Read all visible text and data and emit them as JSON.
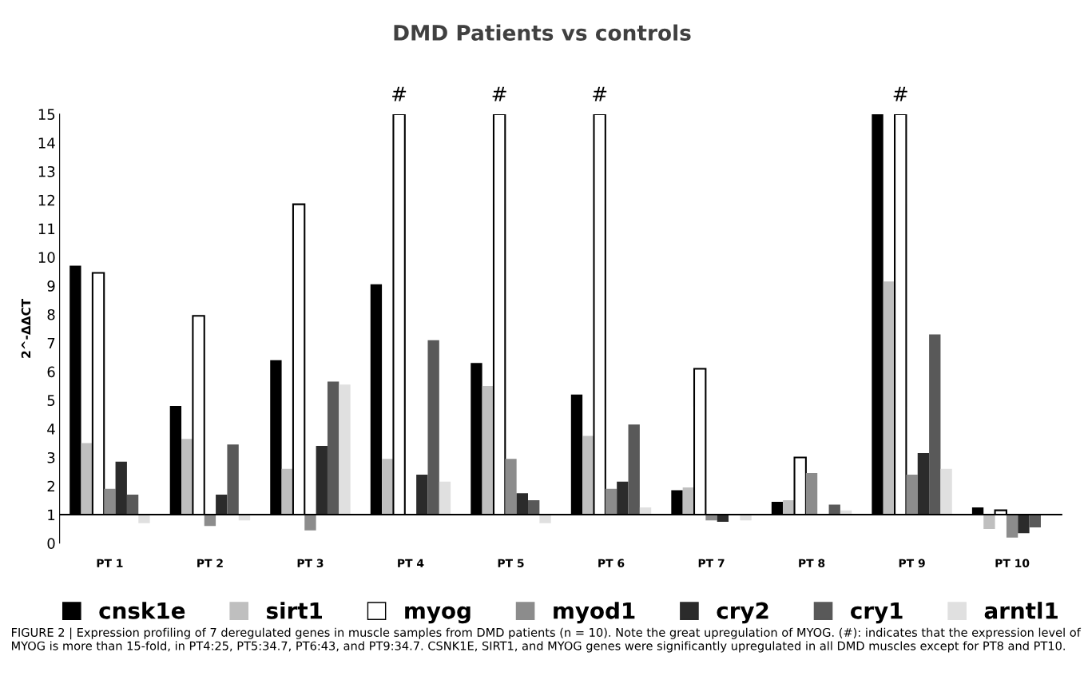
{
  "chart_data": {
    "type": "bar",
    "title": "DMD Patients vs controls",
    "ylabel": "2^-ΔΔCT",
    "categories": [
      "PT 1",
      "PT 2",
      "PT 3",
      "PT 4",
      "PT 5",
      "PT 6",
      "PT 7",
      "PT 8",
      "PT 9",
      "PT 10"
    ],
    "series": [
      {
        "name": "cnsk1e",
        "color": "#000000",
        "base": [
          1,
          1,
          1,
          1,
          1,
          1,
          1,
          1,
          1,
          1
        ],
        "values": [
          8.7,
          3.8,
          5.4,
          8.05,
          5.3,
          4.2,
          0.85,
          0.45,
          14,
          0.25
        ]
      },
      {
        "name": "sirt1",
        "color": "#bfbfbf",
        "base": [
          1,
          1,
          1,
          1,
          1,
          1,
          1,
          1,
          1,
          1
        ],
        "values": [
          2.5,
          2.65,
          1.6,
          1.95,
          4.5,
          2.75,
          0.95,
          0.5,
          8.15,
          -0.5
        ]
      },
      {
        "name": "myog",
        "color": "#ffffff",
        "base": [
          1,
          1,
          1,
          1,
          1,
          1,
          1,
          1,
          1,
          1
        ],
        "values": [
          8.45,
          6.95,
          10.85,
          14,
          14,
          14,
          5.1,
          2.0,
          14,
          0.15
        ]
      },
      {
        "name": "myod1",
        "color": "#8c8c8c",
        "base": [
          1,
          1,
          1,
          null,
          1,
          1,
          1,
          1,
          1,
          1
        ],
        "values": [
          0.9,
          -0.4,
          -0.55,
          null,
          1.95,
          0.9,
          -0.2,
          1.45,
          1.4,
          -0.8
        ]
      },
      {
        "name": "cry2",
        "color": "#2b2b2b",
        "base": [
          1,
          1,
          1,
          1,
          1,
          1,
          1,
          null,
          1,
          1
        ],
        "values": [
          1.85,
          0.7,
          2.4,
          1.4,
          0.75,
          1.15,
          -0.25,
          null,
          2.15,
          -0.65
        ]
      },
      {
        "name": "cry1",
        "color": "#595959",
        "base": [
          1,
          1,
          1,
          1,
          1,
          1,
          null,
          1,
          1,
          1
        ],
        "values": [
          0.7,
          2.45,
          4.65,
          6.1,
          0.5,
          3.15,
          null,
          0.35,
          6.3,
          -0.45
        ]
      },
      {
        "name": "arntl1",
        "color": "#e0e0e0",
        "base": [
          1,
          1,
          1,
          1,
          1,
          1,
          1,
          1,
          1,
          null
        ],
        "values": [
          -0.3,
          -0.2,
          4.55,
          1.15,
          -0.3,
          0.25,
          -0.2,
          0.15,
          1.6,
          null
        ]
      }
    ],
    "ylim": [
      0,
      15
    ],
    "yticks": [
      0,
      1,
      2,
      3,
      4,
      5,
      6,
      7,
      8,
      9,
      10,
      11,
      12,
      13,
      14,
      15
    ],
    "ref_lines": [
      {
        "axis": "y",
        "value": 1,
        "color": "#000000"
      }
    ],
    "grid": false,
    "legend": "bottom",
    "annotations": [
      "#",
      "#",
      "#",
      "#",
      "FIGURE 2 | Expression profiling of 7 deregulated genes in muscle samples from DMD patients (n = 10). Note the great upregulation of MYOG. (#): indicates that the expression level of MYOG is more than 15-fold, in PT4:25, PT5:34.7, PT6:43, and PT9:34.7. CSNK1E, SIRT1, and MYOG genes were significantly upregulated in all DMD muscles except for PT8 and PT10."
    ]
  }
}
